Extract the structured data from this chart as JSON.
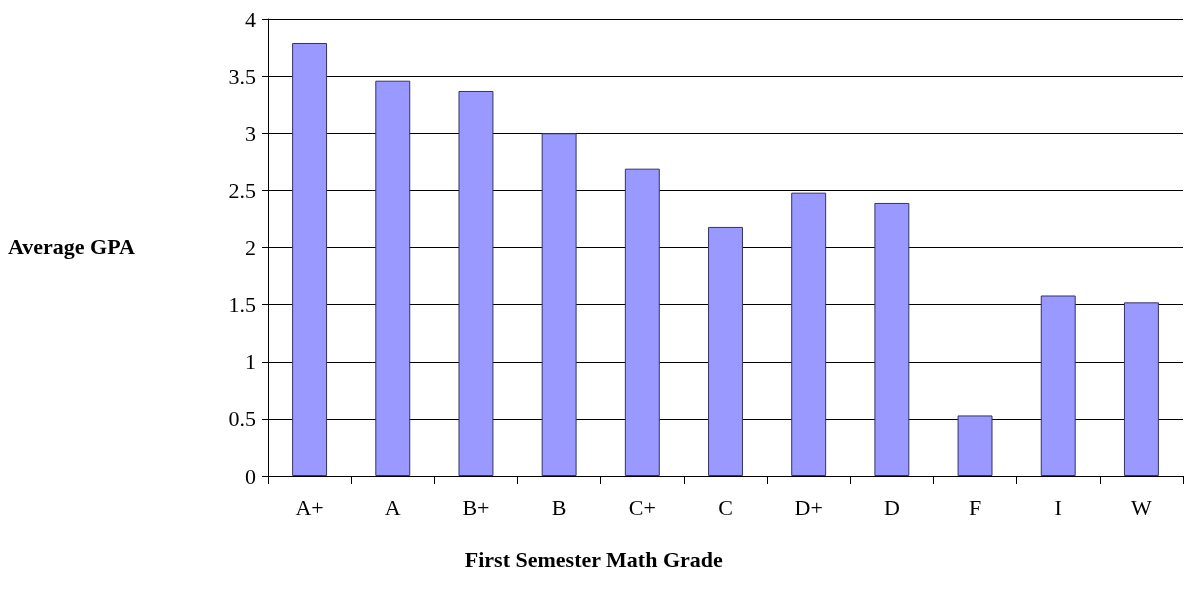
{
  "chart_data": {
    "type": "bar",
    "xlabel": "First Semester Math Grade",
    "ylabel": "Average GPA",
    "categories": [
      "A+",
      "A",
      "B+",
      "B",
      "C+",
      "C",
      "D+",
      "D",
      "F",
      "I",
      "W"
    ],
    "values": [
      3.79,
      3.46,
      3.37,
      3.0,
      2.69,
      2.18,
      2.48,
      2.39,
      0.53,
      1.58,
      1.52
    ],
    "color": "#9999ff",
    "ylim": [
      0,
      4
    ],
    "yticks": [
      0,
      0.5,
      1,
      1.5,
      2,
      2.5,
      3,
      3.5,
      4
    ],
    "grid": "y"
  }
}
